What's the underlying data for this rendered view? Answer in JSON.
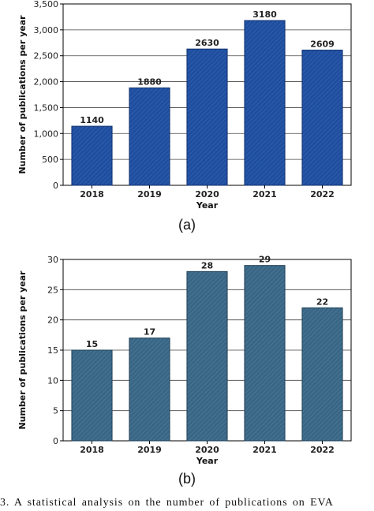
{
  "caption": "3.  A statistical analysis on the number of publications on EVA",
  "chart_data": [
    {
      "type": "bar",
      "panel_label": "(a)",
      "categories": [
        "2018",
        "2019",
        "2020",
        "2021",
        "2022"
      ],
      "values": [
        1140,
        1880,
        2630,
        3180,
        2609
      ],
      "data_labels": [
        "1140",
        "1880",
        "2630",
        "3180",
        "2609"
      ],
      "xlabel": "Year",
      "ylabel": "Number of publications per year",
      "ylim": [
        0,
        3500
      ],
      "yticks": [
        0,
        500,
        1000,
        1500,
        2000,
        2500,
        3000,
        3500
      ],
      "ytick_labels": [
        "0",
        "500",
        "1,000",
        "1,500",
        "2,000",
        "2,500",
        "3,000",
        "3,500"
      ],
      "grid": "horizontal",
      "bar_color": "#1f4e9e",
      "bar_edge_color": "#0f2f6e"
    },
    {
      "type": "bar",
      "panel_label": "(b)",
      "categories": [
        "2018",
        "2019",
        "2020",
        "2021",
        "2022"
      ],
      "values": [
        15,
        17,
        28,
        29,
        22
      ],
      "data_labels": [
        "15",
        "17",
        "28",
        "29",
        "22"
      ],
      "xlabel": "Year",
      "ylabel": "Number of publications per year",
      "ylim": [
        0,
        30
      ],
      "yticks": [
        0,
        5,
        10,
        15,
        20,
        25,
        30
      ],
      "ytick_labels": [
        "0",
        "5",
        "10",
        "15",
        "20",
        "25",
        "30"
      ],
      "grid": "horizontal",
      "bar_color": "#3a6685",
      "bar_edge_color": "#1f3f57"
    }
  ]
}
